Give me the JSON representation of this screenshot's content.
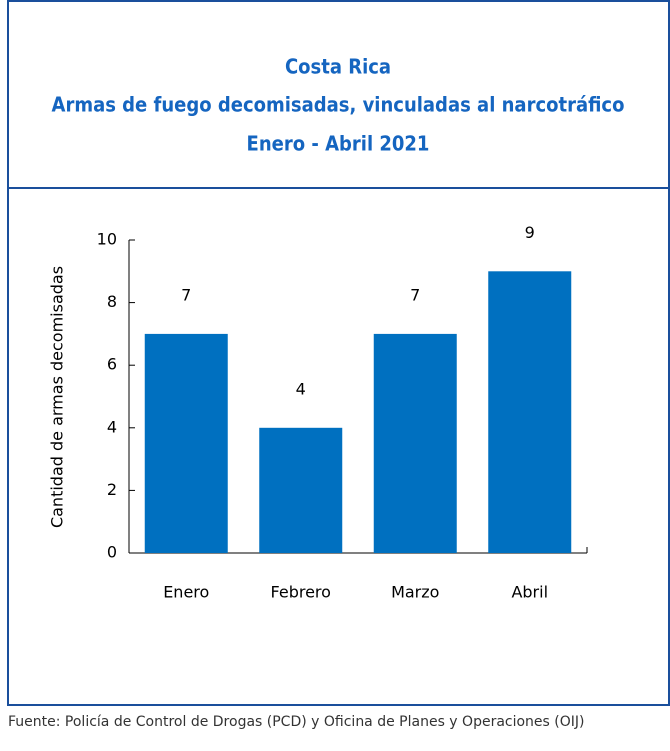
{
  "chart_data": {
    "type": "bar",
    "title": [
      "Costa Rica",
      "Armas de fuego decomisadas, vinculadas al narcotráfico",
      "Enero - Abril  2021"
    ],
    "ylabel": "Cantidad de armas decomisadas",
    "categories": [
      "Enero",
      "Febrero",
      "Marzo",
      "Abril"
    ],
    "values": [
      7,
      4,
      7,
      9
    ],
    "color": "#0070c0",
    "ylim": [
      0,
      10
    ],
    "yticks": [
      0,
      2,
      4,
      6,
      8,
      10
    ],
    "grid": false,
    "source": "Fuente: Policía de Control de Drogas (PCD) y Oficina de Planes y Operaciones (OIJ)"
  }
}
